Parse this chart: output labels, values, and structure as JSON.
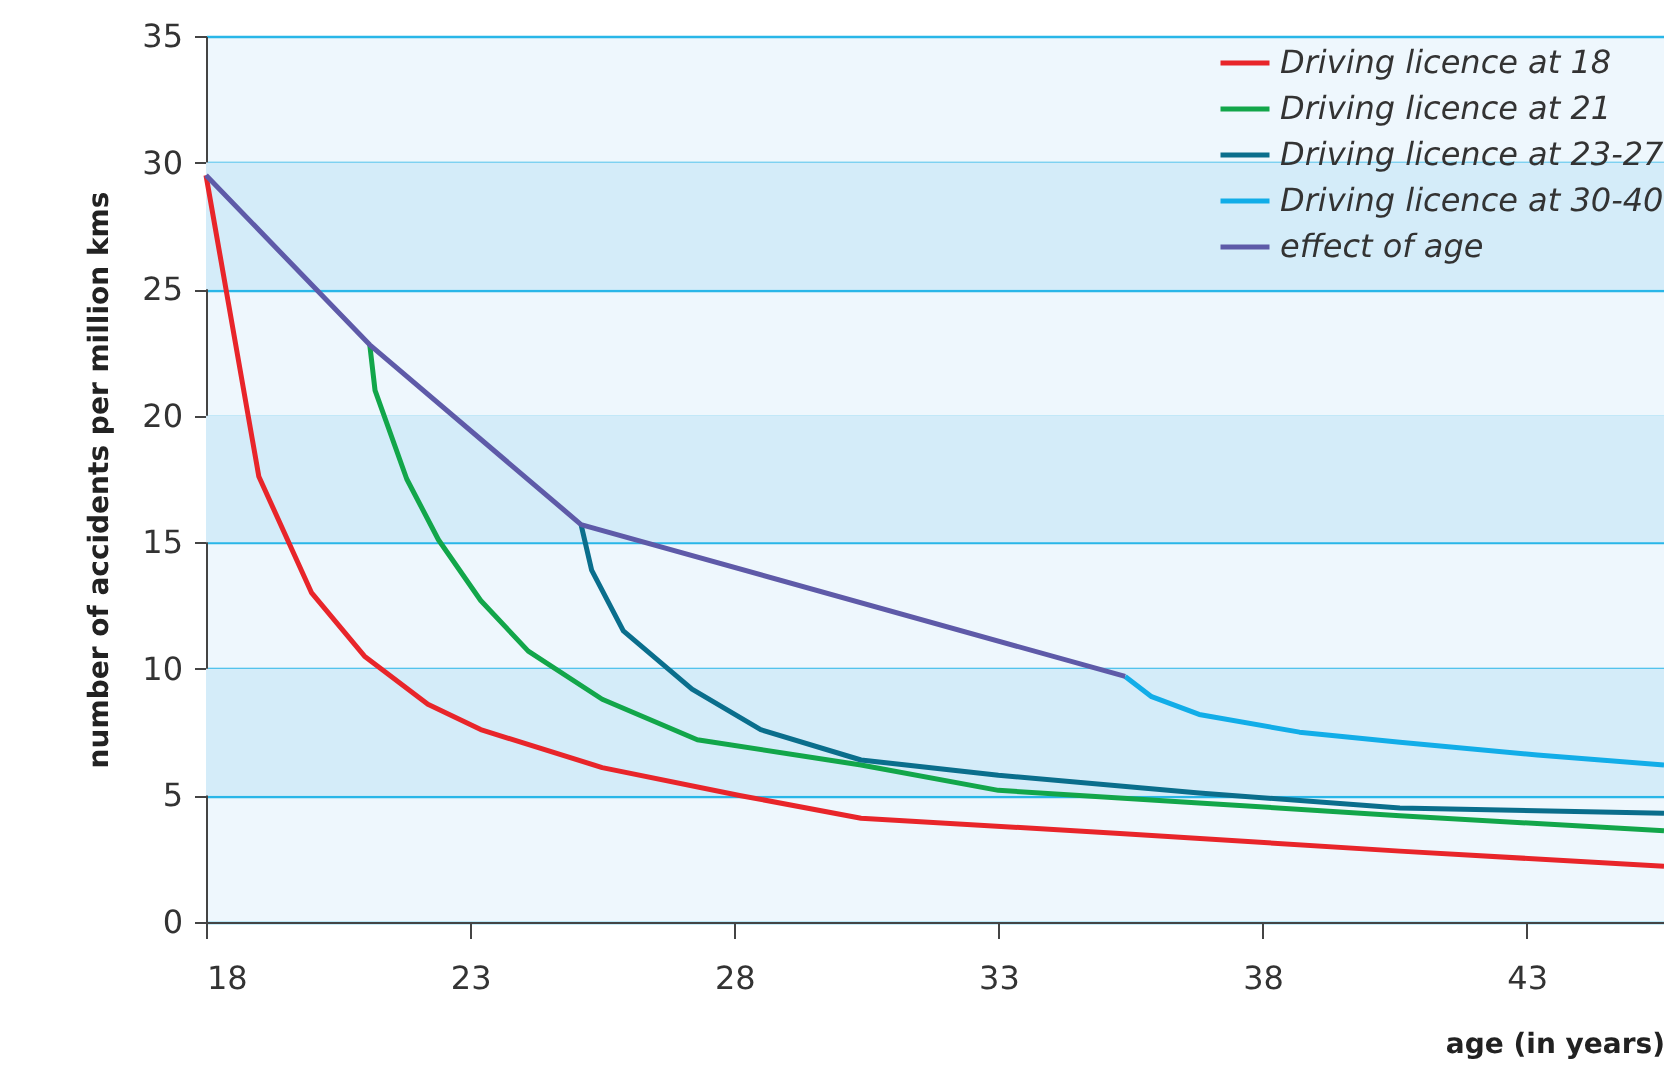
{
  "chart_data": {
    "type": "line",
    "xlabel": "age (in years)",
    "ylabel": "number of accidents per million kms",
    "xlim": [
      18,
      45.6
    ],
    "xticks": [
      18,
      23,
      28,
      33,
      38,
      43
    ],
    "ylim": [
      0,
      35
    ],
    "yticks": [
      0,
      5,
      10,
      15,
      20,
      25,
      30,
      35
    ],
    "grid": "y",
    "legend": "top right",
    "line_style": "solid",
    "bands": [
      {
        "axis": "y",
        "from": 5,
        "to": 10,
        "color": "#d4ecf9"
      },
      {
        "axis": "y",
        "from": 15,
        "to": 20,
        "color": "#d4ecf9"
      },
      {
        "axis": "y",
        "from": 25,
        "to": 30,
        "color": "#d4ecf9"
      }
    ],
    "series": [
      {
        "name": "Driving licence at 18",
        "color": "#e8252a",
        "x": [
          18,
          19,
          20,
          21,
          22.2,
          23.2,
          25.5,
          28.1,
          30.4,
          35.3,
          40.6,
          45.6
        ],
        "values": [
          29.5,
          17.6,
          13.0,
          10.5,
          8.6,
          7.6,
          6.1,
          5.0,
          4.1,
          3.5,
          2.8,
          2.2
        ]
      },
      {
        "name": "Driving licence at 21",
        "color": "#12a64a",
        "x": [
          21.1,
          21.2,
          21.8,
          22.4,
          23.2,
          24.1,
          25.5,
          27.3,
          30.4,
          33,
          36.8,
          40.6,
          45.6
        ],
        "values": [
          22.8,
          21,
          17.5,
          15.1,
          12.7,
          10.7,
          8.8,
          7.2,
          6.2,
          5.2,
          4.7,
          4.2,
          3.6
        ]
      },
      {
        "name": "Driving licence at 23-27",
        "color": "#0a6e8c",
        "x": [
          25.1,
          25.3,
          25.9,
          27.2,
          28.5,
          30.4,
          33,
          36.8,
          40.6,
          45.6
        ],
        "values": [
          15.7,
          13.9,
          11.5,
          9.2,
          7.6,
          6.4,
          5.8,
          5.1,
          4.5,
          4.3
        ]
      },
      {
        "name": "Driving licence at 30-40",
        "color": "#12ade8",
        "x": [
          35.4,
          35.9,
          36.8,
          38.7,
          40.6,
          43.2,
          45.6
        ],
        "values": [
          9.7,
          8.9,
          8.2,
          7.5,
          7.1,
          6.6,
          6.2
        ]
      },
      {
        "name": "effect of age",
        "color": "#5e5aa8",
        "x": [
          18,
          21.1,
          25.1,
          35.4
        ],
        "values": [
          29.5,
          22.8,
          15.7,
          9.7
        ]
      }
    ]
  }
}
